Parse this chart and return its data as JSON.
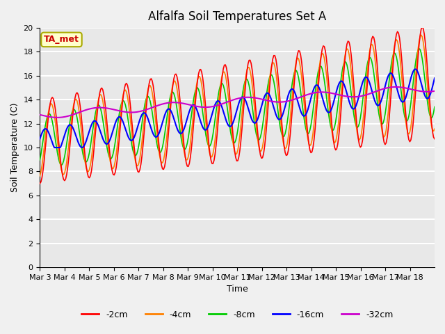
{
  "title": "Alfalfa Soil Temperatures Set A",
  "xlabel": "Time",
  "ylabel": "Soil Temperature (C)",
  "ylim": [
    0,
    20
  ],
  "yticks": [
    0,
    2,
    4,
    6,
    8,
    10,
    12,
    14,
    16,
    18,
    20
  ],
  "xtick_labels": [
    "Mar 3",
    "Mar 4",
    "Mar 5",
    "Mar 6",
    "Mar 7",
    "Mar 8",
    "Mar 9",
    "Mar 10",
    "Mar 11",
    "Mar 12",
    "Mar 13",
    "Mar 14",
    "Mar 15",
    "Mar 16",
    "Mar 17",
    "Mar 18"
  ],
  "n_days": 16,
  "colors": {
    "-2cm": "#FF0000",
    "-4cm": "#FF8000",
    "-8cm": "#00CC00",
    "-16cm": "#0000FF",
    "-32cm": "#CC00CC"
  },
  "legend_labels": [
    "-2cm",
    "-4cm",
    "-8cm",
    "-16cm",
    "-32cm"
  ],
  "background_color": "#E8E8E8",
  "grid_color": "#FFFFFF",
  "annotation_text": "TA_met",
  "annotation_bg": "#FFFFCC",
  "annotation_border": "#AAAA00",
  "title_fontsize": 12,
  "axis_fontsize": 9,
  "tick_fontsize": 8
}
